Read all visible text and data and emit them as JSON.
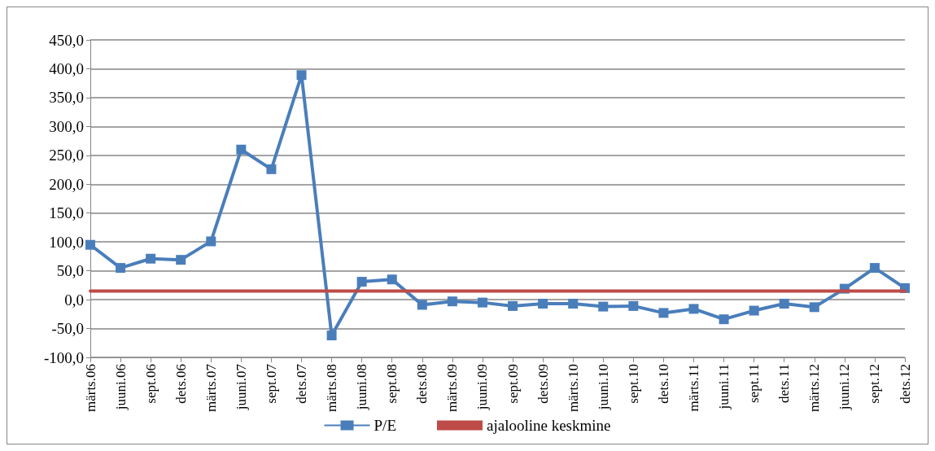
{
  "chart_data": {
    "type": "line",
    "categories": [
      "märts.06",
      "juuni.06",
      "sept.06",
      "dets.06",
      "märts.07",
      "juuni.07",
      "sept.07",
      "dets.07",
      "märts.08",
      "juuni.08",
      "sept.08",
      "dets.08",
      "märts.09",
      "juuni.09",
      "sept.09",
      "dets.09",
      "märts.10",
      "juuni.10",
      "sept.10",
      "dets.10",
      "märts.11",
      "juuni.11",
      "sept.11",
      "dets.11",
      "märts.12",
      "juuni.12",
      "sept.12",
      "dets.12"
    ],
    "series": [
      {
        "name": "P/E",
        "color": "#4a7ebb",
        "marker": "square",
        "values": [
          95,
          55,
          71,
          69,
          101,
          260,
          226,
          389,
          -62,
          31,
          35,
          -9,
          -3,
          -5,
          -11,
          -7,
          -7,
          -12,
          -11,
          -23,
          -16,
          -34,
          -19,
          -7,
          -13,
          19,
          55,
          20
        ]
      },
      {
        "name": "ajalooline keskmine",
        "color": "#be4b48",
        "marker": "none",
        "values": [
          15,
          15,
          15,
          15,
          15,
          15,
          15,
          15,
          15,
          15,
          15,
          15,
          15,
          15,
          15,
          15,
          15,
          15,
          15,
          15,
          15,
          15,
          15,
          15,
          15,
          15,
          15,
          15
        ]
      }
    ],
    "ylim": [
      -100,
      450
    ],
    "yticks": [
      {
        "value": -100,
        "label": "-100,0"
      },
      {
        "value": -50,
        "label": "-50,0"
      },
      {
        "value": 0,
        "label": "0,0"
      },
      {
        "value": 50,
        "label": "50,0"
      },
      {
        "value": 100,
        "label": "100,0"
      },
      {
        "value": 150,
        "label": "150,0"
      },
      {
        "value": 200,
        "label": "200,0"
      },
      {
        "value": 250,
        "label": "250,0"
      },
      {
        "value": 300,
        "label": "300,0"
      },
      {
        "value": 350,
        "label": "350,0"
      },
      {
        "value": 400,
        "label": "400,0"
      },
      {
        "value": 450,
        "label": "450,0"
      }
    ],
    "grid": "y",
    "legend": "bottom",
    "line_style": "solid"
  }
}
